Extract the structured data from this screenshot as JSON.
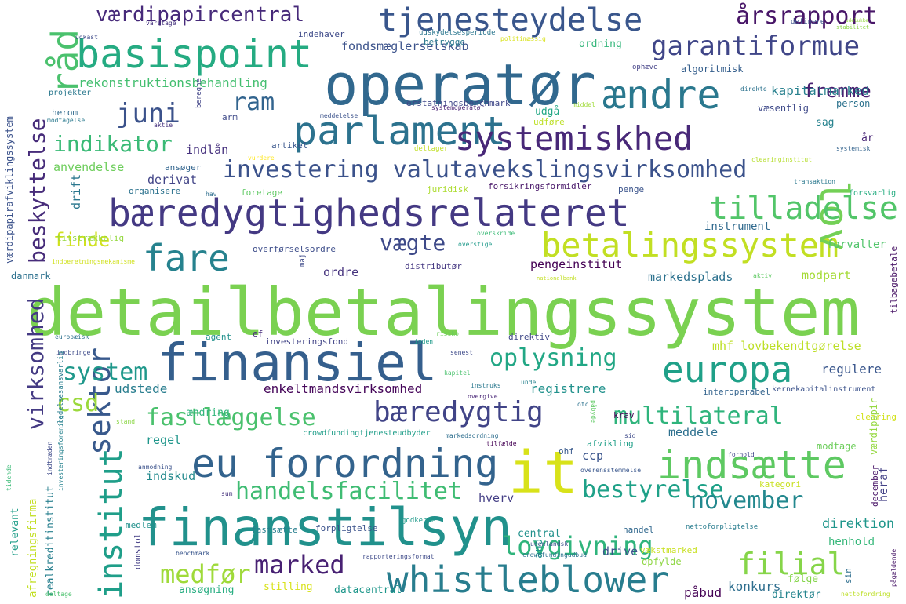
{
  "words": [
    {
      "text": "detailbetalingssystem",
      "color": "#7ad151"
    },
    {
      "text": "operatør",
      "color": "#31688e"
    },
    {
      "text": "finansiel",
      "color": "#355f8d"
    },
    {
      "text": "finanstilsyn",
      "color": "#21918c"
    },
    {
      "text": "bæredygtighedsrelateret",
      "color": "#443983"
    },
    {
      "text": "eu forordning",
      "color": "#33638d"
    },
    {
      "text": "it",
      "color": "#d8e219"
    },
    {
      "text": "parlament",
      "color": "#2c728e"
    },
    {
      "text": "basispoint",
      "color": "#25ab82"
    },
    {
      "text": "europa",
      "color": "#1fa088"
    },
    {
      "text": "whistleblower",
      "color": "#287d8e"
    },
    {
      "text": "systemiskhed",
      "color": "#482878"
    },
    {
      "text": "betalingssystem",
      "color": "#c2df23"
    },
    {
      "text": "indsætte",
      "color": "#5ec962"
    },
    {
      "text": "ændre",
      "color": "#2a788e"
    },
    {
      "text": "råd",
      "color": "#4ac16d"
    },
    {
      "text": "lov",
      "color": "#73d056"
    },
    {
      "text": "tjenesteydelse",
      "color": "#39568c"
    },
    {
      "text": "garantiformue",
      "color": "#404688"
    },
    {
      "text": "investering valutavekslingsvirksomhed",
      "color": "#3b528b"
    },
    {
      "text": "fare",
      "color": "#26828e"
    },
    {
      "text": "tilladelse",
      "color": "#52c569"
    },
    {
      "text": "sektor",
      "color": "#38598c"
    },
    {
      "text": "institut",
      "color": "#1f9e89"
    },
    {
      "text": "bæredygtig",
      "color": "#414487"
    },
    {
      "text": "multilateral",
      "color": "#2fb47c"
    },
    {
      "text": "handelsfacilitet",
      "color": "#3fbc73"
    },
    {
      "text": "lovgivning",
      "color": "#2fb47c"
    },
    {
      "text": "bestyrelse",
      "color": "#1fa188"
    },
    {
      "text": "november",
      "color": "#23888e"
    },
    {
      "text": "filial",
      "color": "#86d549"
    },
    {
      "text": "marked",
      "color": "#482173"
    },
    {
      "text": "medfør",
      "color": "#9fda3a"
    },
    {
      "text": "fastlæggelse",
      "color": "#4ac16d"
    },
    {
      "text": "oplysning",
      "color": "#22a785"
    },
    {
      "text": "system",
      "color": "#1f988b"
    },
    {
      "text": "csd",
      "color": "#9bd93c"
    },
    {
      "text": "virksomhed",
      "color": "#443a83"
    },
    {
      "text": "beskyttelse",
      "color": "#472c7a"
    },
    {
      "text": "indikator",
      "color": "#3aba76"
    },
    {
      "text": "juni",
      "color": "#3b528b"
    },
    {
      "text": "ram",
      "color": "#32648e"
    },
    {
      "text": "fremme",
      "color": "#481f70"
    },
    {
      "text": "årsrapport",
      "color": "#481668"
    },
    {
      "text": "værdipapircentral",
      "color": "#472a7a"
    },
    {
      "text": "vægte",
      "color": "#3e4a89"
    },
    {
      "text": "finde",
      "color": "#d0e11c"
    },
    {
      "text": "rekonstruktionsbehandling",
      "color": "#44bf70"
    },
    {
      "text": "fondsmæglerselskab",
      "color": "#3b528b"
    },
    {
      "text": "kapitalmarked",
      "color": "#27808e"
    },
    {
      "text": "enkeltmandsvirksomhed",
      "color": "#450559"
    },
    {
      "text": "udstede",
      "color": "#287d8e"
    },
    {
      "text": "registrere",
      "color": "#21918c"
    },
    {
      "text": "mhf lovbekendtgørelse",
      "color": "#bddf26"
    },
    {
      "text": "regulere",
      "color": "#39568c"
    },
    {
      "text": "konkurs",
      "color": "#2e6e8e"
    },
    {
      "text": "påbud",
      "color": "#440154"
    },
    {
      "text": "direktion",
      "color": "#1f968b"
    },
    {
      "text": "henhold",
      "color": "#35b779"
    },
    {
      "text": "instrument",
      "color": "#306a8e"
    },
    {
      "text": "forvalter",
      "color": "#50c46a"
    },
    {
      "text": "modpart",
      "color": "#a5db36"
    },
    {
      "text": "markedsplads",
      "color": "#2c718e"
    },
    {
      "text": "pengeinstitut",
      "color": "#440154"
    },
    {
      "text": "ordre",
      "color": "#46337e"
    },
    {
      "text": "indlån",
      "color": "#46317e"
    },
    {
      "text": "derivat",
      "color": "#414487"
    },
    {
      "text": "anvendelse",
      "color": "#6ccd5a"
    },
    {
      "text": "drift",
      "color": "#2a778e"
    },
    {
      "text": "indskud",
      "color": "#238a8d"
    },
    {
      "text": "regel",
      "color": "#1f968b"
    },
    {
      "text": "hverv",
      "color": "#433e85"
    },
    {
      "text": "central",
      "color": "#21918c"
    },
    {
      "text": "drive",
      "color": "#3b528b"
    },
    {
      "text": "opfylde",
      "color": "#8fd744"
    },
    {
      "text": "ansøgning",
      "color": "#26ad81"
    },
    {
      "text": "stilling",
      "color": "#d8e219"
    },
    {
      "text": "datacentral",
      "color": "#1f978b"
    },
    {
      "text": "følge",
      "color": "#85d54a"
    },
    {
      "text": "direktør",
      "color": "#25858e"
    },
    {
      "text": "ccp",
      "color": "#3a548c"
    },
    {
      "text": "heraf",
      "color": "#424086"
    },
    {
      "text": "meddele",
      "color": "#2d708e"
    },
    {
      "text": "and",
      "color": "#20938c"
    },
    {
      "text": "ordning",
      "color": "#33b67a"
    },
    {
      "text": "udgå",
      "color": "#22a785"
    },
    {
      "text": "sag",
      "color": "#26828e"
    },
    {
      "text": "år",
      "color": "#482576"
    },
    {
      "text": "person",
      "color": "#2c728e"
    },
    {
      "text": "algoritmisk",
      "color": "#355f8d"
    },
    {
      "text": "modtage",
      "color": "#6ccd5a"
    },
    {
      "text": "afvikling",
      "color": "#1f9f88"
    },
    {
      "text": "krav",
      "color": "#440154"
    },
    {
      "text": "ændring",
      "color": "#31b57b"
    },
    {
      "text": "agent",
      "color": "#21918c"
    },
    {
      "text": "ef",
      "color": "#472d7b"
    },
    {
      "text": "investeringsfond",
      "color": "#414487"
    },
    {
      "text": "direktiv",
      "color": "#3f4788"
    },
    {
      "text": "danmark",
      "color": "#2d718e"
    },
    {
      "text": "relevant",
      "color": "#1f9e89"
    },
    {
      "text": "afregningsfirma",
      "color": "#c2df23"
    },
    {
      "text": "realkreditinstitut",
      "color": "#277f8e"
    },
    {
      "text": "værdipapirafviklingssystem",
      "color": "#3b528b"
    },
    {
      "text": "tilstrækkelig",
      "color": "#95d840"
    },
    {
      "text": "overførselsordre",
      "color": "#3d4d8a"
    },
    {
      "text": "distributør",
      "color": "#453882"
    },
    {
      "text": "juridisk",
      "color": "#addc30"
    },
    {
      "text": "forsikringsformidler",
      "color": "#481769"
    },
    {
      "text": "penge",
      "color": "#3a538b"
    },
    {
      "text": "foretage",
      "color": "#5ec962"
    },
    {
      "text": "organisere",
      "color": "#2c728e"
    },
    {
      "text": "ansøger",
      "color": "#32658e"
    },
    {
      "text": "artikel",
      "color": "#39568c"
    },
    {
      "text": "udføre",
      "color": "#bddf26"
    },
    {
      "text": "erstatningsbenchmark",
      "color": "#3f4788"
    },
    {
      "text": "herom",
      "color": "#306a8e"
    },
    {
      "text": "projekter",
      "color": "#2a788e"
    },
    {
      "text": "indehaver",
      "color": "#3e4a89"
    },
    {
      "text": "betrygge",
      "color": "#2a788e"
    },
    {
      "text": "medlem",
      "color": "#21918c"
    },
    {
      "text": "domstol",
      "color": "#433e85"
    },
    {
      "text": "fastsætte",
      "color": "#277f8e"
    },
    {
      "text": "forpligtelse",
      "color": "#3b528b"
    },
    {
      "text": "godkende",
      "color": "#1f9a8a"
    },
    {
      "text": "handel",
      "color": "#31688e"
    },
    {
      "text": "nettoforpligtelse",
      "color": "#287c8e"
    },
    {
      "text": "kategori",
      "color": "#c8e020"
    },
    {
      "text": "clearing",
      "color": "#d2e21b"
    },
    {
      "text": "december",
      "color": "#481467"
    },
    {
      "text": "værdipapir",
      "color": "#95d840"
    },
    {
      "text": "tilbagebetale",
      "color": "#471365"
    },
    {
      "text": "forsvarlig",
      "color": "#26ad81"
    },
    {
      "text": "systemisk",
      "color": "#33638d"
    },
    {
      "text": "væsentlig",
      "color": "#3e4989"
    },
    {
      "text": "definere",
      "color": "#3b528b"
    },
    {
      "text": "stabilitet",
      "color": "#8bd646"
    },
    {
      "text": "udskydelsesperiode",
      "color": "#2a768e"
    },
    {
      "text": "politimæssig",
      "color": "#d8e219"
    },
    {
      "text": "ophæve",
      "color": "#424086"
    },
    {
      "text": "direkte",
      "color": "#2c728e"
    },
    {
      "text": "middel",
      "color": "#a0da39"
    },
    {
      "text": "systemoperatør",
      "color": "#482173"
    },
    {
      "text": "meddelelse",
      "color": "#3b528b"
    },
    {
      "text": "beregne",
      "color": "#414487"
    },
    {
      "text": "aktie",
      "color": "#46327e"
    },
    {
      "text": "modtagelse",
      "color": "#29798e"
    },
    {
      "text": "arm",
      "color": "#3e4a89"
    },
    {
      "text": "deltager",
      "color": "#c0df25"
    },
    {
      "text": "vurdere",
      "color": "#fde725"
    },
    {
      "text": "clearinginstitut",
      "color": "#b5de2b"
    },
    {
      "text": "transaktion",
      "color": "#2a788e"
    },
    {
      "text": "hav",
      "color": "#2e6e8e"
    },
    {
      "text": "overskride",
      "color": "#3aba76"
    },
    {
      "text": "overstige",
      "color": "#1f9a8a"
    },
    {
      "text": "maj",
      "color": "#3e4a89"
    },
    {
      "text": "nationalbank",
      "color": "#c2df23"
    },
    {
      "text": "aktiv",
      "color": "#5ec962"
    },
    {
      "text": "indberetningsmekanisme",
      "color": "#d0e11c"
    },
    {
      "text": "europæisk",
      "color": "#2d708e"
    },
    {
      "text": "indbringe",
      "color": "#3e4a89"
    },
    {
      "text": "risiko",
      "color": "#6ccd5a"
    },
    {
      "text": "inden",
      "color": "#1f9a8a"
    },
    {
      "text": "senest",
      "color": "#3e4a89"
    },
    {
      "text": "kapitel",
      "color": "#4ac16d"
    },
    {
      "text": "instruks",
      "color": "#2a788e"
    },
    {
      "text": "unde",
      "color": "#26828e"
    },
    {
      "text": "overgive",
      "color": "#482576"
    },
    {
      "text": "interoperabel",
      "color": "#33638d"
    },
    {
      "text": "kernekapitalinstrument",
      "color": "#3b528b"
    },
    {
      "text": "otc",
      "color": "#2c728e"
    },
    {
      "text": "påbyde",
      "color": "#5ec962"
    },
    {
      "text": "sid",
      "color": "#3e4a89"
    },
    {
      "text": "ledelsesansvarlig",
      "color": "#287d8e"
    },
    {
      "text": "stand",
      "color": "#8bd646"
    },
    {
      "text": "crowdfundingtjenesteudbyder",
      "color": "#1f9e89"
    },
    {
      "text": "markedsordning",
      "color": "#2e6e8e"
    },
    {
      "text": "tilfælde",
      "color": "#440154"
    },
    {
      "text": "ohf",
      "color": "#38598c"
    },
    {
      "text": "forhold",
      "color": "#404688"
    },
    {
      "text": "overensstemmelse",
      "color": "#39568c"
    },
    {
      "text": "sum",
      "color": "#46337e"
    },
    {
      "text": "anmodning",
      "color": "#3b528b"
    },
    {
      "text": "indtræden",
      "color": "#3e4a89"
    },
    {
      "text": "investeringsforening",
      "color": "#26828e"
    },
    {
      "text": "tidende",
      "color": "#3aba76"
    },
    {
      "text": "benchmark",
      "color": "#39568c"
    },
    {
      "text": "rapporteringsformat",
      "color": "#3e4a89"
    },
    {
      "text": "crowdfundingudbud",
      "color": "#2c728e"
    },
    {
      "text": "udenlandsk",
      "color": "#3b528b"
    },
    {
      "text": "vækstmarked",
      "color": "#c8e020"
    },
    {
      "text": "deltage",
      "color": "#4ac16d"
    },
    {
      "text": "nettofordring",
      "color": "#bddf26"
    },
    {
      "text": "sin",
      "color": "#2e6e8e"
    },
    {
      "text": "pågældende",
      "color": "#481668"
    },
    {
      "text": "udkast",
      "color": "#3e4a89"
    },
    {
      "text": "varetage",
      "color": "#46337e"
    },
    {
      "text": "udelukke",
      "color": "#95d840"
    }
  ]
}
